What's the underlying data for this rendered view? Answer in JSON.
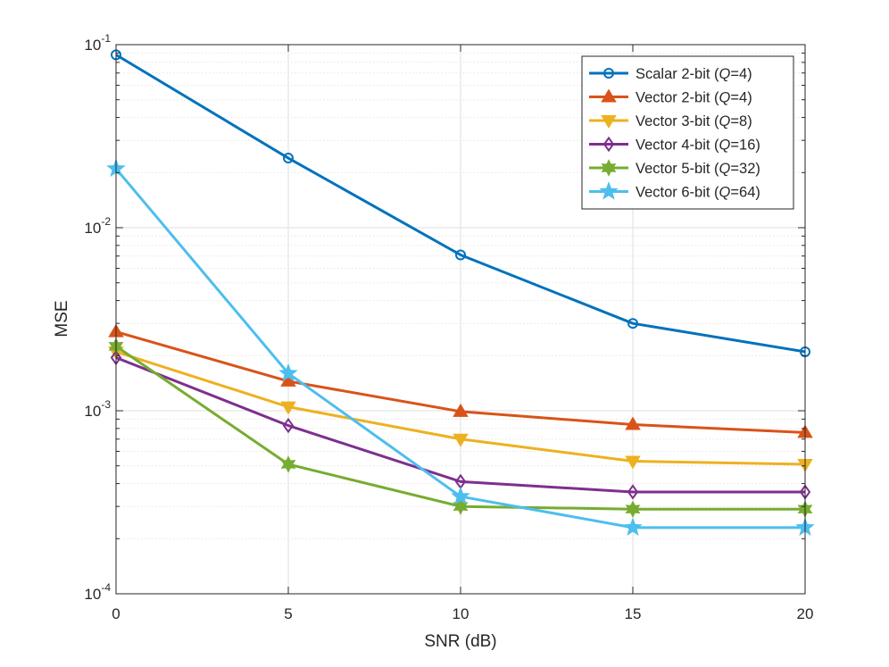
{
  "chart_data": {
    "type": "line",
    "xlabel": "SNR (dB)",
    "ylabel": "MSE",
    "x": [
      0,
      5,
      10,
      15,
      20
    ],
    "xlim": [
      0,
      20
    ],
    "ylim": [
      0.0001,
      0.1
    ],
    "yscale": "log",
    "grid": true,
    "minor_grid": true,
    "legend_position": "top-right",
    "x_ticks": [
      0,
      5,
      10,
      15,
      20
    ],
    "x_tick_labels": [
      "0",
      "5",
      "10",
      "15",
      "20"
    ],
    "y_ticks": [
      0.0001,
      0.001,
      0.01,
      0.1
    ],
    "y_tick_labels": [
      {
        "base": "10",
        "exp": "-4"
      },
      {
        "base": "10",
        "exp": "-3"
      },
      {
        "base": "10",
        "exp": "-2"
      },
      {
        "base": "10",
        "exp": "-1"
      }
    ],
    "series": [
      {
        "name": "Scalar 2-bit (Q=4)",
        "legend": {
          "prefix": "Scalar 2-bit (",
          "q": "Q",
          "suffix": "=4)"
        },
        "color": "#0072BD",
        "marker": "circle",
        "values": [
          0.088,
          0.024,
          0.0071,
          0.003,
          0.0021
        ]
      },
      {
        "name": "Vector 2-bit (Q=4)",
        "legend": {
          "prefix": "Vector 2-bit (",
          "q": "Q",
          "suffix": "=4)"
        },
        "color": "#D95319",
        "marker": "triangle-up",
        "values": [
          0.0027,
          0.00145,
          0.00099,
          0.00084,
          0.00076
        ]
      },
      {
        "name": "Vector 3-bit (Q=8)",
        "legend": {
          "prefix": "Vector 3-bit (",
          "q": "Q",
          "suffix": "=8)"
        },
        "color": "#EDB120",
        "marker": "triangle-down",
        "values": [
          0.0021,
          0.00105,
          0.0007,
          0.00053,
          0.00051
        ]
      },
      {
        "name": "Vector 4-bit (Q=16)",
        "legend": {
          "prefix": "Vector 4-bit (",
          "q": "Q",
          "suffix": "=16)"
        },
        "color": "#7E2F8E",
        "marker": "diamond",
        "values": [
          0.00195,
          0.00083,
          0.00041,
          0.00036,
          0.00036
        ]
      },
      {
        "name": "Vector 5-bit (Q=32)",
        "legend": {
          "prefix": "Vector 5-bit (",
          "q": "Q",
          "suffix": "=32)"
        },
        "color": "#77AC30",
        "marker": "hexagram",
        "values": [
          0.00225,
          0.00051,
          0.0003,
          0.00029,
          0.00029
        ]
      },
      {
        "name": "Vector 6-bit (Q=64)",
        "legend": {
          "prefix": "Vector 6-bit (",
          "q": "Q",
          "suffix": "=64)"
        },
        "color": "#4DBEEE",
        "marker": "pentagram",
        "values": [
          0.021,
          0.0016,
          0.00034,
          0.00023,
          0.00023
        ]
      }
    ]
  }
}
